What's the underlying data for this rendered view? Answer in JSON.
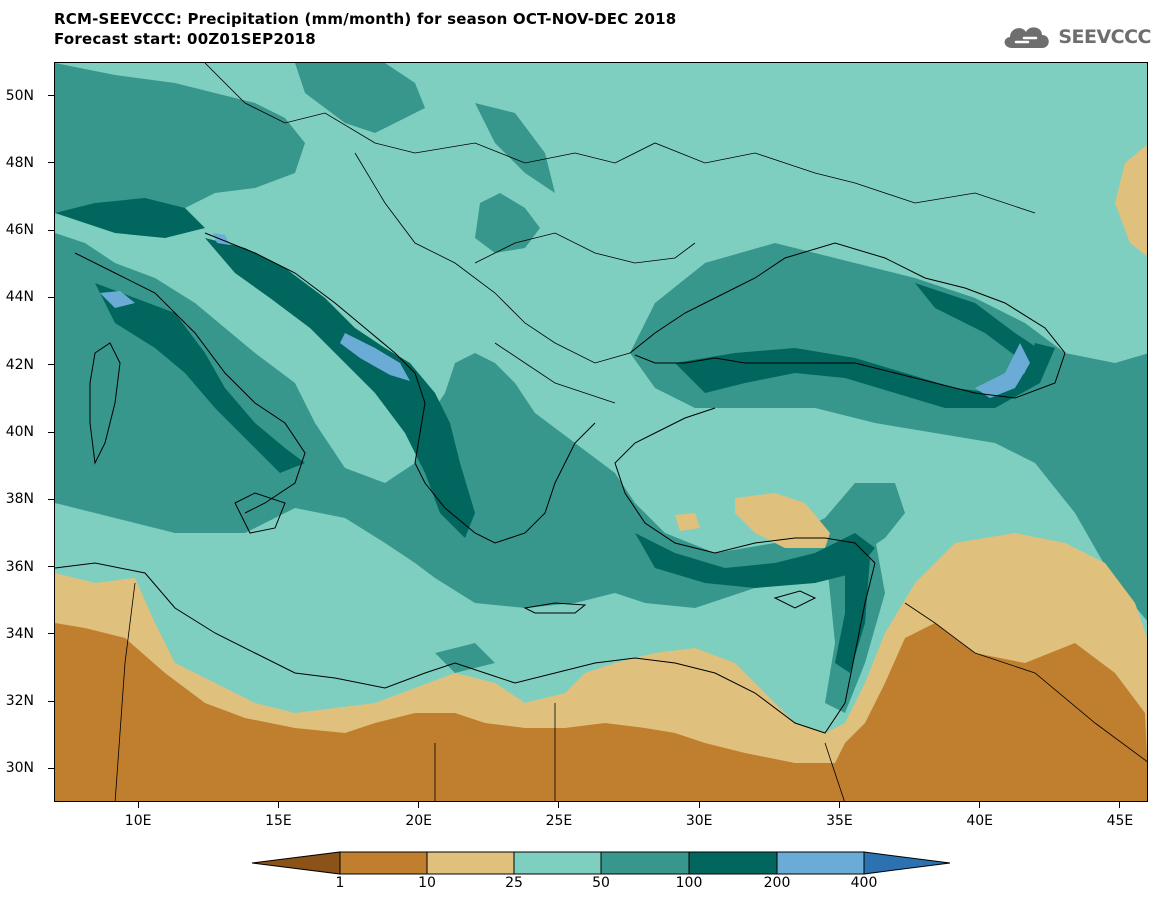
{
  "header": {
    "title_line_1": "RCM-SEEVCCC: Precipitation (mm/month) for season OCT-NOV-DEC 2018",
    "title_line_2": "Forecast start: 00Z01SEP2018"
  },
  "logo": {
    "text": "SEEVCCC",
    "icon": "cloud-icon"
  },
  "map": {
    "lon_range": [
      7,
      46
    ],
    "lat_range": [
      29,
      51
    ],
    "lat_ticks": [
      "30N",
      "32N",
      "34N",
      "36N",
      "38N",
      "40N",
      "42N",
      "44N",
      "46N",
      "48N",
      "50N"
    ],
    "lat_values": [
      30,
      32,
      34,
      36,
      38,
      40,
      42,
      44,
      46,
      48,
      50
    ],
    "lon_ticks": [
      "10E",
      "15E",
      "20E",
      "25E",
      "30E",
      "35E",
      "40E",
      "45E"
    ],
    "lon_values": [
      10,
      15,
      20,
      25,
      30,
      35,
      40,
      45
    ]
  },
  "colorbar": {
    "labels": [
      "1",
      "10",
      "25",
      "50",
      "100",
      "200",
      "400"
    ],
    "colors": [
      "#8b5318",
      "#bf7f2e",
      "#e0c07d",
      "#7fcfc0",
      "#37978c",
      "#00665e",
      "#6bacd6",
      "#2c71b0"
    ]
  }
}
